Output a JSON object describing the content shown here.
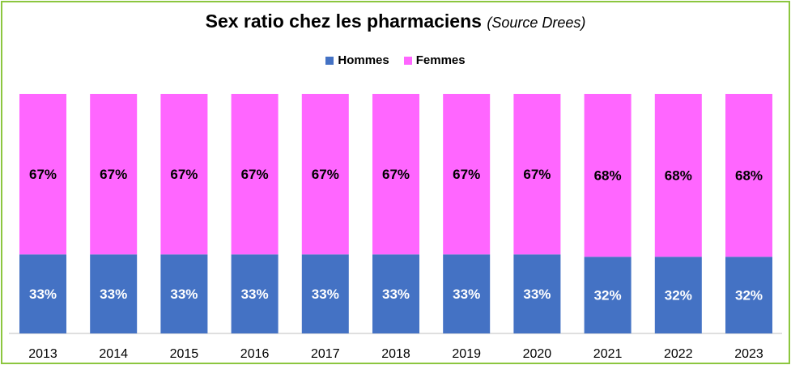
{
  "chart_data": {
    "type": "bar",
    "stacked": true,
    "title": "Sex ratio chez les pharmaciens",
    "subtitle": "(Source Drees)",
    "categories": [
      "2013",
      "2014",
      "2015",
      "2016",
      "2017",
      "2018",
      "2019",
      "2020",
      "2021",
      "2022",
      "2023"
    ],
    "series": [
      {
        "name": "Hommes",
        "color": "#4472c4",
        "label_color": "#ffffff",
        "values": [
          33,
          33,
          33,
          33,
          33,
          33,
          33,
          33,
          32,
          32,
          32
        ],
        "labels": [
          "33%",
          "33%",
          "33%",
          "33%",
          "33%",
          "33%",
          "33%",
          "33%",
          "32%",
          "32%",
          "32%"
        ]
      },
      {
        "name": "Femmes",
        "color": "#ff66ff",
        "label_color": "#000000",
        "values": [
          67,
          67,
          67,
          67,
          67,
          67,
          67,
          67,
          68,
          68,
          68
        ],
        "labels": [
          "67%",
          "67%",
          "67%",
          "67%",
          "67%",
          "67%",
          "67%",
          "67%",
          "68%",
          "68%",
          "68%"
        ]
      }
    ],
    "ylim": [
      0,
      100
    ],
    "legend": "top-center",
    "grid": false
  },
  "colors": {
    "border": "#8cc63f",
    "axis": "#bfbfbf"
  }
}
